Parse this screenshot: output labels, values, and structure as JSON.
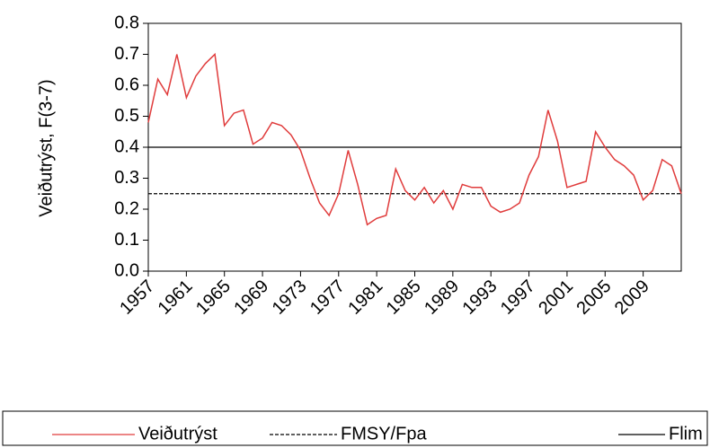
{
  "chart_data": {
    "type": "line",
    "y_label": "Veiðutrýst, F(3-7)",
    "x": [
      1957,
      1958,
      1959,
      1960,
      1961,
      1962,
      1963,
      1964,
      1965,
      1966,
      1967,
      1968,
      1969,
      1970,
      1971,
      1972,
      1973,
      1974,
      1975,
      1976,
      1977,
      1978,
      1979,
      1980,
      1981,
      1982,
      1983,
      1984,
      1985,
      1986,
      1987,
      1988,
      1989,
      1990,
      1991,
      1992,
      1993,
      1994,
      1995,
      1996,
      1997,
      1998,
      1999,
      2000,
      2001,
      2002,
      2003,
      2004,
      2005,
      2006,
      2007,
      2008,
      2009,
      2010,
      2011,
      2012,
      2013
    ],
    "series": [
      {
        "name": "Veiðutrýst",
        "color": "#e03c3c",
        "values": [
          0.48,
          0.62,
          0.57,
          0.7,
          0.56,
          0.63,
          0.67,
          0.7,
          0.47,
          0.51,
          0.52,
          0.41,
          0.43,
          0.48,
          0.47,
          0.44,
          0.39,
          0.3,
          0.22,
          0.18,
          0.25,
          0.39,
          0.28,
          0.15,
          0.17,
          0.18,
          0.33,
          0.26,
          0.23,
          0.27,
          0.22,
          0.26,
          0.2,
          0.28,
          0.27,
          0.27,
          0.21,
          0.19,
          0.2,
          0.22,
          0.31,
          0.37,
          0.52,
          0.42,
          0.27,
          0.28,
          0.29,
          0.45,
          0.4,
          0.36,
          0.34,
          0.31,
          0.23,
          0.26,
          0.36,
          0.34,
          0.25
        ]
      }
    ],
    "hlines": [
      {
        "name": "FMSY/Fpa",
        "value": 0.25,
        "color": "#000000",
        "style": "dashed"
      },
      {
        "name": "Flim",
        "value": 0.4,
        "color": "#000000",
        "style": "solid"
      }
    ],
    "xlim": [
      1957,
      2013
    ],
    "xticks": [
      1957,
      1961,
      1965,
      1969,
      1973,
      1977,
      1981,
      1985,
      1989,
      1993,
      1997,
      2001,
      2005,
      2009
    ],
    "ylim": [
      0,
      0.8
    ],
    "yticks": [
      {
        "value": 0,
        "label": "0.0"
      },
      0.1,
      0.2,
      0.3,
      0.4,
      0.5,
      0.6,
      0.7,
      0.8
    ]
  }
}
